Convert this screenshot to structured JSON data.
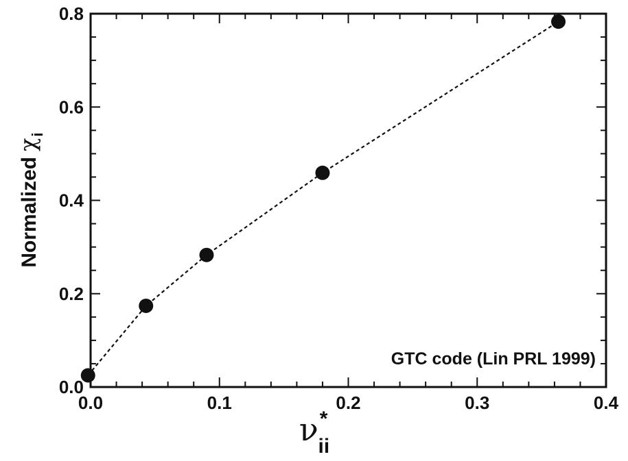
{
  "chart_data": {
    "type": "scatter",
    "ylabel": "Normalized",
    "ylabel_symbol": "χ",
    "ylabel_subscript": "i",
    "xlabel_symbol": "ν",
    "xlabel_subscript": "ii",
    "xlabel_superscript": "*",
    "xlim": [
      0.0,
      0.4
    ],
    "ylim": [
      0.0,
      0.8
    ],
    "x_ticks": [
      0.0,
      0.1,
      0.2,
      0.3,
      0.4
    ],
    "x_tick_labels": [
      "0.0",
      "0.1",
      "0.2",
      "0.3",
      "0.4"
    ],
    "y_ticks": [
      0.0,
      0.2,
      0.4,
      0.6,
      0.8
    ],
    "y_tick_labels": [
      "0.0",
      "0.2",
      "0.4",
      "0.6",
      "0.8"
    ],
    "grid": false,
    "connecting_line": "dashed",
    "marker": "filled-circle",
    "marker_color": "#111111",
    "line_color": "#111111",
    "annotation": "GTC code (Lin PRL 1999)",
    "annotation_position": "bottom-right",
    "series": [
      {
        "x": [
          -0.002,
          0.043,
          0.09,
          0.18,
          0.363
        ],
        "y": [
          0.025,
          0.174,
          0.283,
          0.459,
          0.783
        ]
      }
    ]
  }
}
